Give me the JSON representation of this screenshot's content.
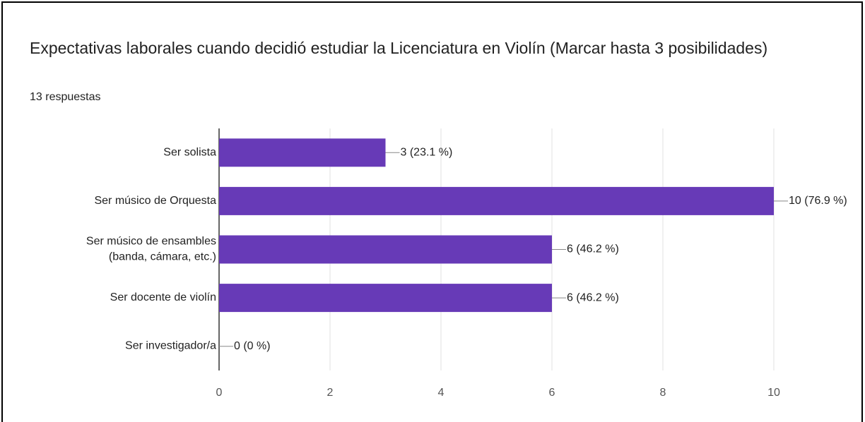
{
  "chart_data": {
    "type": "bar",
    "orientation": "horizontal",
    "title": "Expectativas laborales cuando decidió estudiar la Licenciatura en Violín (Marcar hasta 3 posibilidades)",
    "subtitle": "13 respuestas",
    "categories": [
      "Ser solista",
      "Ser músico de Orquesta",
      "Ser músico de ensambles (banda, cámara, etc.)",
      "Ser docente de violín",
      "Ser investigador/a"
    ],
    "values": [
      3,
      10,
      6,
      6,
      0
    ],
    "value_labels": [
      "3 (23.1 %)",
      "10 (76.9 %)",
      "6 (46.2 %)",
      "6 (46.2 %)",
      "0 (0 %)"
    ],
    "color": "#673ab7",
    "xlim": [
      0,
      10
    ],
    "xticks": [
      0,
      2,
      4,
      6,
      8,
      10
    ],
    "grid": true
  }
}
